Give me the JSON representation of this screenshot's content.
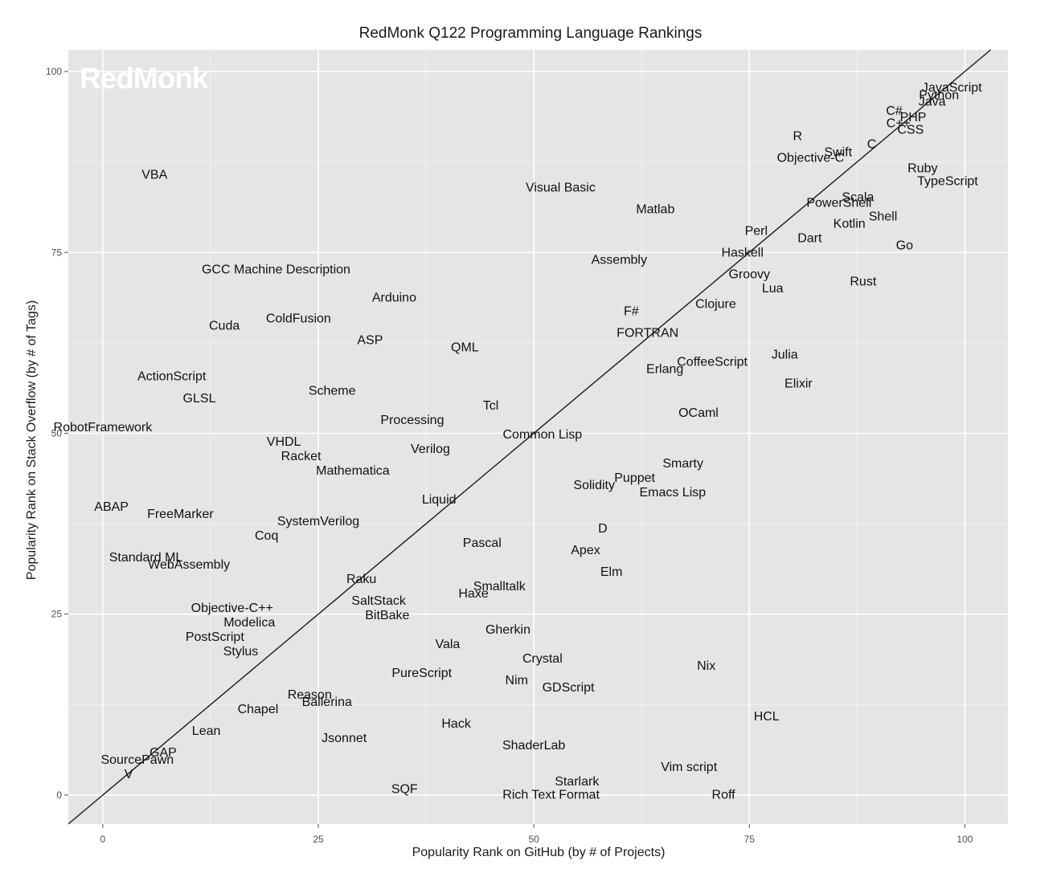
{
  "chart_data": {
    "type": "scatter",
    "title": "RedMonk Q122 Programming Language Rankings",
    "xlabel": "Popularity Rank on GitHub (by # of Projects)",
    "ylabel": "Popularity Rank on Stack Overflow (by # of Tags)",
    "watermark": "RedMonk",
    "xlim": [
      -4,
      105
    ],
    "ylim": [
      -4,
      103
    ],
    "x_ticks": [
      0,
      25,
      50,
      75,
      100
    ],
    "y_ticks": [
      0,
      25,
      50,
      75,
      100
    ],
    "grid": true,
    "background": "#e5e5e5",
    "trend_line": {
      "slope": 1.0,
      "intercept": 0
    },
    "points": [
      {
        "label": "JavaScript",
        "x": 98.5,
        "y": 97.7
      },
      {
        "label": "Python",
        "x": 97.0,
        "y": 96.7
      },
      {
        "label": "Java",
        "x": 96.2,
        "y": 95.8
      },
      {
        "label": "C#",
        "x": 91.8,
        "y": 94.5
      },
      {
        "label": "PHP",
        "x": 94.0,
        "y": 93.6
      },
      {
        "label": "C++",
        "x": 92.3,
        "y": 92.8
      },
      {
        "label": "CSS",
        "x": 93.7,
        "y": 91.9
      },
      {
        "label": "R",
        "x": 80.6,
        "y": 91.0
      },
      {
        "label": "Swift",
        "x": 85.3,
        "y": 88.8
      },
      {
        "label": "C",
        "x": 89.2,
        "y": 89.9
      },
      {
        "label": "Objective-C",
        "x": 82.1,
        "y": 88.0
      },
      {
        "label": "Ruby",
        "x": 95.1,
        "y": 86.6
      },
      {
        "label": "TypeScript",
        "x": 98.0,
        "y": 84.8
      },
      {
        "label": "VBA",
        "x": 6.0,
        "y": 85.7
      },
      {
        "label": "Visual Basic",
        "x": 53.1,
        "y": 83.9
      },
      {
        "label": "Scala",
        "x": 87.6,
        "y": 82.6
      },
      {
        "label": "PowerShell",
        "x": 85.4,
        "y": 81.8
      },
      {
        "label": "Matlab",
        "x": 64.1,
        "y": 80.9
      },
      {
        "label": "Shell",
        "x": 90.5,
        "y": 79.9
      },
      {
        "label": "Kotlin",
        "x": 86.6,
        "y": 78.9
      },
      {
        "label": "Perl",
        "x": 75.8,
        "y": 77.9
      },
      {
        "label": "Dart",
        "x": 82.0,
        "y": 76.9
      },
      {
        "label": "Go",
        "x": 93.0,
        "y": 75.9
      },
      {
        "label": "Haskell",
        "x": 74.2,
        "y": 74.9
      },
      {
        "label": "Assembly",
        "x": 59.9,
        "y": 73.9
      },
      {
        "label": "GCC Machine Description",
        "x": 20.1,
        "y": 72.6
      },
      {
        "label": "Groovy",
        "x": 75.0,
        "y": 71.9
      },
      {
        "label": "Rust",
        "x": 88.2,
        "y": 70.9
      },
      {
        "label": "Lua",
        "x": 77.7,
        "y": 70.0
      },
      {
        "label": "Arduino",
        "x": 33.8,
        "y": 68.7
      },
      {
        "label": "Clojure",
        "x": 71.1,
        "y": 67.8
      },
      {
        "label": "F#",
        "x": 61.3,
        "y": 66.8
      },
      {
        "label": "ColdFusion",
        "x": 22.7,
        "y": 65.8
      },
      {
        "label": "Cuda",
        "x": 14.1,
        "y": 64.8
      },
      {
        "label": "FORTRAN",
        "x": 63.2,
        "y": 63.8
      },
      {
        "label": "ASP",
        "x": 31.0,
        "y": 62.8
      },
      {
        "label": "QML",
        "x": 42.0,
        "y": 61.8
      },
      {
        "label": "Julia",
        "x": 79.1,
        "y": 60.8
      },
      {
        "label": "CoffeeScript",
        "x": 70.7,
        "y": 59.8
      },
      {
        "label": "Erlang",
        "x": 65.2,
        "y": 58.8
      },
      {
        "label": "ActionScript",
        "x": 8.0,
        "y": 57.8
      },
      {
        "label": "Elixir",
        "x": 80.7,
        "y": 56.8
      },
      {
        "label": "Scheme",
        "x": 26.6,
        "y": 55.8
      },
      {
        "label": "GLSL",
        "x": 11.2,
        "y": 54.8
      },
      {
        "label": "Tcl",
        "x": 45.0,
        "y": 53.8
      },
      {
        "label": "OCaml",
        "x": 69.1,
        "y": 52.8
      },
      {
        "label": "Processing",
        "x": 35.9,
        "y": 51.8
      },
      {
        "label": "RobotFramework",
        "x": 0.0,
        "y": 50.8
      },
      {
        "label": "Common Lisp",
        "x": 51.0,
        "y": 49.8
      },
      {
        "label": "VHDL",
        "x": 21.0,
        "y": 48.8
      },
      {
        "label": "Verilog",
        "x": 38.0,
        "y": 47.8
      },
      {
        "label": "Racket",
        "x": 23.0,
        "y": 46.8
      },
      {
        "label": "Smarty",
        "x": 67.3,
        "y": 45.8
      },
      {
        "label": "Mathematica",
        "x": 29.0,
        "y": 44.8
      },
      {
        "label": "Puppet",
        "x": 61.7,
        "y": 43.8
      },
      {
        "label": "Solidity",
        "x": 57.0,
        "y": 42.8
      },
      {
        "label": "Emacs Lisp",
        "x": 66.1,
        "y": 41.8
      },
      {
        "label": "Liquid",
        "x": 39.0,
        "y": 40.8
      },
      {
        "label": "ABAP",
        "x": 1.0,
        "y": 39.8
      },
      {
        "label": "FreeMarker",
        "x": 9.0,
        "y": 38.8
      },
      {
        "label": "SystemVerilog",
        "x": 25.0,
        "y": 37.8
      },
      {
        "label": "D",
        "x": 58.0,
        "y": 36.8
      },
      {
        "label": "Coq",
        "x": 19.0,
        "y": 35.8
      },
      {
        "label": "Pascal",
        "x": 44.0,
        "y": 34.8
      },
      {
        "label": "Apex",
        "x": 56.0,
        "y": 33.8
      },
      {
        "label": "Standard ML",
        "x": 5.0,
        "y": 32.8
      },
      {
        "label": "WebAssembly",
        "x": 10.0,
        "y": 31.8
      },
      {
        "label": "Elm",
        "x": 59.0,
        "y": 30.8
      },
      {
        "label": "Raku",
        "x": 30.0,
        "y": 29.8
      },
      {
        "label": "Smalltalk",
        "x": 46.0,
        "y": 28.8
      },
      {
        "label": "Haxe",
        "x": 43.0,
        "y": 27.8
      },
      {
        "label": "SaltStack",
        "x": 32.0,
        "y": 26.8
      },
      {
        "label": "Objective-C++",
        "x": 15.0,
        "y": 25.8
      },
      {
        "label": "BitBake",
        "x": 33.0,
        "y": 24.8
      },
      {
        "label": "Modelica",
        "x": 17.0,
        "y": 23.8
      },
      {
        "label": "Gherkin",
        "x": 47.0,
        "y": 22.8
      },
      {
        "label": "PostScript",
        "x": 13.0,
        "y": 21.8
      },
      {
        "label": "Vala",
        "x": 40.0,
        "y": 20.8
      },
      {
        "label": "Stylus",
        "x": 16.0,
        "y": 19.8
      },
      {
        "label": "Crystal",
        "x": 51.0,
        "y": 18.8
      },
      {
        "label": "Nix",
        "x": 70.0,
        "y": 17.8
      },
      {
        "label": "PureScript",
        "x": 37.0,
        "y": 16.8
      },
      {
        "label": "Nim",
        "x": 48.0,
        "y": 15.8
      },
      {
        "label": "GDScript",
        "x": 54.0,
        "y": 14.8
      },
      {
        "label": "Reason",
        "x": 24.0,
        "y": 13.8
      },
      {
        "label": "Ballerina",
        "x": 26.0,
        "y": 12.8
      },
      {
        "label": "Chapel",
        "x": 18.0,
        "y": 11.8
      },
      {
        "label": "HCL",
        "x": 77.0,
        "y": 10.8
      },
      {
        "label": "Hack",
        "x": 41.0,
        "y": 9.8
      },
      {
        "label": "Lean",
        "x": 12.0,
        "y": 8.8
      },
      {
        "label": "Jsonnet",
        "x": 28.0,
        "y": 7.8
      },
      {
        "label": "ShaderLab",
        "x": 50.0,
        "y": 6.8
      },
      {
        "label": "GAP",
        "x": 7.0,
        "y": 5.8
      },
      {
        "label": "SourcePawn",
        "x": 4.0,
        "y": 4.8
      },
      {
        "label": "Vim script",
        "x": 68.0,
        "y": 3.8
      },
      {
        "label": "V",
        "x": 3.0,
        "y": 2.8
      },
      {
        "label": "Starlark",
        "x": 55.0,
        "y": 1.8
      },
      {
        "label": "SQF",
        "x": 35.0,
        "y": 0.8
      },
      {
        "label": "Rich Text Format",
        "x": 52.0,
        "y": 0.0
      },
      {
        "label": "Roff",
        "x": 72.0,
        "y": 0.0
      }
    ]
  }
}
